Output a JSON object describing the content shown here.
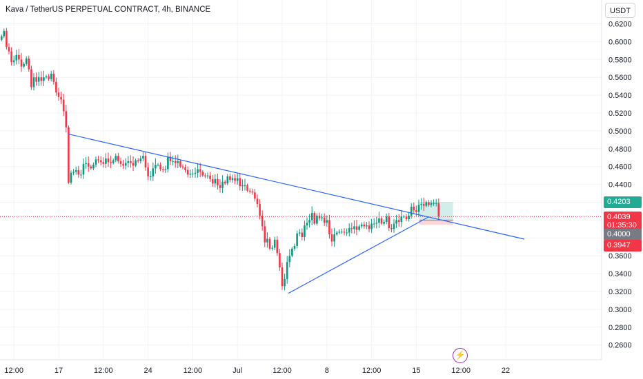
{
  "title": "Kava / TetherUS PERPETUAL CONTRACT, 4h, BINANCE",
  "currency_button": "USDT",
  "price_labels": {
    "target": "0.4203",
    "last_price": "0.4039",
    "countdown": "01:35:30",
    "entry": "0.4000",
    "stop": "0.3947"
  },
  "flash_icon": "lightning-icon",
  "colors": {
    "up": "#089981",
    "down": "#f23645",
    "trendline": "#2962ff",
    "target_zone": "#22ab94",
    "stop_zone": "#f23645",
    "entry_tag": "#787b86"
  },
  "chart_data": {
    "type": "candlestick",
    "title": "Kava / TetherUS PERPETUAL CONTRACT, 4h, BINANCE",
    "ylim": [
      0.25,
      0.625
    ],
    "y_ticks": [
      "0.6200",
      "0.6000",
      "0.5800",
      "0.5600",
      "0.5400",
      "0.5200",
      "0.5000",
      "0.4800",
      "0.4600",
      "0.4400",
      "0.4200",
      "0.4000",
      "0.3800",
      "0.3600",
      "0.3400",
      "0.3200",
      "0.3000",
      "0.2800",
      "0.2600"
    ],
    "x_ticks": [
      {
        "label": "12:00",
        "idx": 5
      },
      {
        "label": "17",
        "idx": 23
      },
      {
        "label": "12:00",
        "idx": 41
      },
      {
        "label": "24",
        "idx": 59
      },
      {
        "label": "12:00",
        "idx": 77
      },
      {
        "label": "Jul",
        "idx": 95
      },
      {
        "label": "12:00",
        "idx": 113
      },
      {
        "label": "8",
        "idx": 131
      },
      {
        "label": "12:00",
        "idx": 149
      },
      {
        "label": "15",
        "idx": 167
      },
      {
        "label": "12:00",
        "idx": 185
      },
      {
        "label": "22",
        "idx": 203
      }
    ],
    "candles_close": [
      0.606,
      0.612,
      0.594,
      0.589,
      0.577,
      0.579,
      0.585,
      0.58,
      0.572,
      0.575,
      0.581,
      0.569,
      0.549,
      0.56,
      0.555,
      0.56,
      0.556,
      0.56,
      0.561,
      0.558,
      0.564,
      0.555,
      0.543,
      0.538,
      0.535,
      0.522,
      0.504,
      0.442,
      0.453,
      0.454,
      0.456,
      0.451,
      0.451,
      0.463,
      0.464,
      0.46,
      0.458,
      0.462,
      0.468,
      0.467,
      0.465,
      0.463,
      0.469,
      0.465,
      0.464,
      0.467,
      0.472,
      0.466,
      0.463,
      0.461,
      0.464,
      0.466,
      0.464,
      0.461,
      0.467,
      0.466,
      0.469,
      0.472,
      0.459,
      0.449,
      0.449,
      0.458,
      0.462,
      0.462,
      0.457,
      0.456,
      0.457,
      0.471,
      0.466,
      0.466,
      0.464,
      0.466,
      0.46,
      0.459,
      0.456,
      0.451,
      0.452,
      0.452,
      0.453,
      0.457,
      0.454,
      0.45,
      0.449,
      0.45,
      0.446,
      0.441,
      0.446,
      0.439,
      0.436,
      0.443,
      0.441,
      0.449,
      0.445,
      0.447,
      0.444,
      0.447,
      0.438,
      0.439,
      0.439,
      0.433,
      0.432,
      0.431,
      0.424,
      0.418,
      0.405,
      0.393,
      0.375,
      0.379,
      0.368,
      0.369,
      0.378,
      0.363,
      0.347,
      0.326,
      0.334,
      0.353,
      0.36,
      0.368,
      0.371,
      0.385,
      0.386,
      0.381,
      0.394,
      0.397,
      0.4,
      0.408,
      0.396,
      0.405,
      0.402,
      0.403,
      0.397,
      0.4,
      0.384,
      0.376,
      0.384,
      0.386,
      0.387,
      0.387,
      0.386,
      0.386,
      0.391,
      0.39,
      0.393,
      0.389,
      0.393,
      0.395,
      0.393,
      0.394,
      0.39,
      0.396,
      0.396,
      0.397,
      0.402,
      0.396,
      0.398,
      0.404,
      0.391,
      0.39,
      0.396,
      0.4,
      0.398,
      0.404,
      0.404,
      0.401,
      0.405,
      0.415,
      0.411,
      0.409,
      0.417,
      0.418,
      0.416,
      0.42,
      0.417,
      0.419,
      0.419,
      0.419,
      0.404
    ],
    "trendlines": [
      {
        "from": {
          "idx": 26.8,
          "price": 0.4965
        },
        "to": {
          "idx": 210.5,
          "price": 0.3787
        }
      },
      {
        "from": {
          "idx": 115.5,
          "price": 0.318
        },
        "to": {
          "idx": 171.8,
          "price": 0.4033
        }
      }
    ],
    "position": {
      "type": "long",
      "entry": 0.4,
      "target": 0.4203,
      "stop": 0.3947,
      "from_idx": 168.2,
      "to_idx": 181.8
    },
    "last_price": 0.4039
  }
}
